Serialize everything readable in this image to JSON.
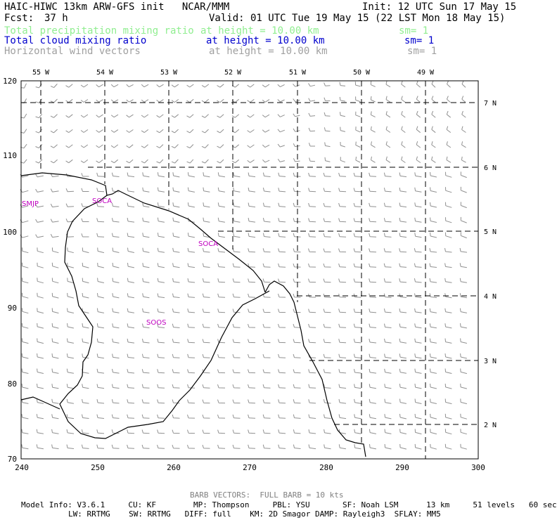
{
  "header": {
    "title_left": "HAIC-HIWC 13km ARW-GFS init   NCAR/MMM",
    "init": "Init: 12 UTC Sun 17 May 15",
    "fcst_label": "Fcst:",
    "fcst_value": "37 h",
    "valid": "Valid: 01 UTC Tue 19 May 15 (22 LST Mon 18 May 15)",
    "fields": [
      {
        "name": "Total precipitation mixing ratio",
        "level": "at height = 10.00 km",
        "smooth": "sm= 1",
        "color": "#90ee90"
      },
      {
        "name": "Total cloud mixing ratio",
        "level": "at height = 10.00 km",
        "smooth": "sm= 1",
        "color": "#0000cd"
      },
      {
        "name": "Horizontal wind vectors",
        "level": "at height = 10.00 km",
        "smooth": "sm= 1",
        "color": "#a0a0a0"
      }
    ]
  },
  "map": {
    "left_ticks": [
      "120",
      "110",
      "100",
      "90",
      "80",
      "70"
    ],
    "bottom_ticks": [
      "240",
      "250",
      "260",
      "270",
      "280",
      "290",
      "300"
    ],
    "lon_labels": [
      "55 W",
      "54 W",
      "53 W",
      "52 W",
      "51 W",
      "50 W",
      "49 W"
    ],
    "lat_labels": [
      "7 N",
      "6 N",
      "5 N",
      "4 N",
      "3 N",
      "2 N"
    ],
    "stations": [
      "SMJP",
      "SOCA",
      "SOCA",
      "SOOS"
    ],
    "station_color": "#c000c0",
    "coast_color": "#000000",
    "barb_color": "#909090"
  },
  "footer": {
    "barb_note": "BARB VECTORS:  FULL BARB = 10 kts",
    "model_line1": "Model Info: V3.6.1     CU: KF        MP: Thompson     PBL: YSU       SF: Noah LSM      13 km     51 levels   60 sec",
    "model_line2": "LW: RRTMG    SW: RRTMG   DIFF: full    KM: 2D Smagor DAMP: Rayleigh3  SFLAY: MM5"
  }
}
